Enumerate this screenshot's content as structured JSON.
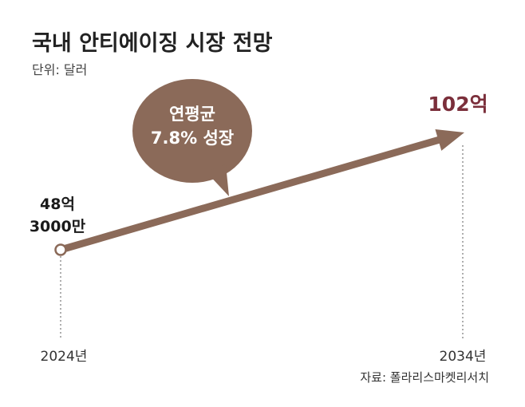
{
  "header": {
    "title": "국내 안티에이징 시장 전망",
    "unit": "단위: 달러"
  },
  "callout": {
    "line1": "연평균",
    "line2": "7.8% 성장"
  },
  "source": "자료: 폴라리스마켓리서치",
  "colors": {
    "arrow": "#8b6a59",
    "bubble": "#8b6a59",
    "end_value": "#7b2f3b",
    "marker_fill": "#ffffff"
  },
  "chart_data": {
    "type": "line",
    "x": [
      "2024년",
      "2034년"
    ],
    "values": [
      4830000000,
      10200000000
    ],
    "value_labels": [
      [
        "48억",
        "3000만"
      ],
      [
        "102억"
      ]
    ],
    "cagr_percent": 7.8,
    "title": "국내 안티에이징 시장 전망",
    "xlabel": "",
    "ylabel": "",
    "grid": false
  }
}
